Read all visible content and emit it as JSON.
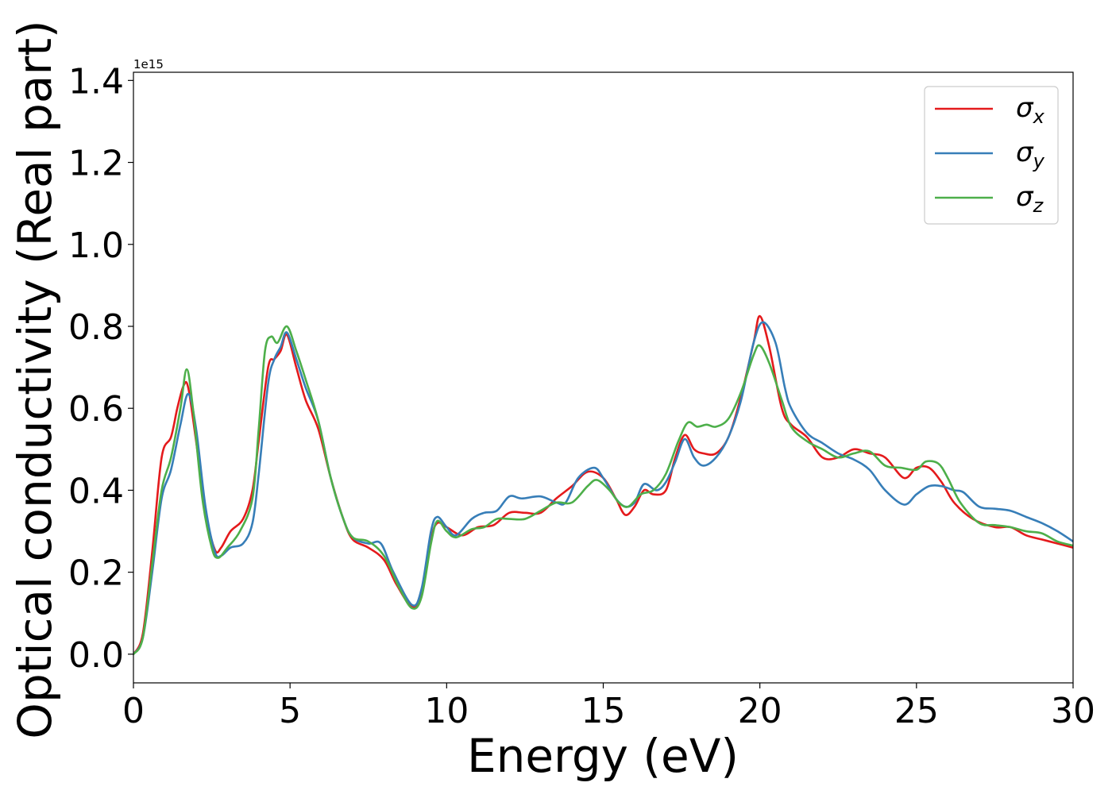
{
  "chart_data": {
    "type": "line",
    "xlabel": "Energy (eV)",
    "ylabel": "Optical conductivity (Real part)",
    "y_offset_label": "1e15",
    "xlim": [
      0,
      30
    ],
    "ylim": [
      -0.07,
      1.42
    ],
    "xticks": [
      0,
      5,
      10,
      15,
      20,
      25,
      30
    ],
    "xtick_labels": [
      "0",
      "5",
      "10",
      "15",
      "20",
      "25",
      "30"
    ],
    "yticks": [
      0.0,
      0.2,
      0.4,
      0.6,
      0.8,
      1.0,
      1.2,
      1.4
    ],
    "ytick_labels": [
      "0.0",
      "0.2",
      "0.4",
      "0.6",
      "0.8",
      "1.0",
      "1.2",
      "1.4"
    ],
    "grid": false,
    "legend_position": "top-right",
    "series": [
      {
        "name": "x",
        "legend_symbol": "σ",
        "legend_sub": "x",
        "color": "#e41a1c",
        "points": [
          [
            0,
            0.0
          ],
          [
            0.3,
            0.05
          ],
          [
            0.6,
            0.25
          ],
          [
            0.9,
            0.48
          ],
          [
            1.2,
            0.53
          ],
          [
            1.4,
            0.6
          ],
          [
            1.6,
            0.655
          ],
          [
            1.75,
            0.65
          ],
          [
            2.0,
            0.52
          ],
          [
            2.3,
            0.35
          ],
          [
            2.6,
            0.255
          ],
          [
            2.8,
            0.26
          ],
          [
            3.1,
            0.3
          ],
          [
            3.5,
            0.33
          ],
          [
            3.8,
            0.4
          ],
          [
            4.0,
            0.52
          ],
          [
            4.3,
            0.7
          ],
          [
            4.5,
            0.72
          ],
          [
            4.7,
            0.74
          ],
          [
            4.9,
            0.78
          ],
          [
            5.2,
            0.7
          ],
          [
            5.5,
            0.62
          ],
          [
            5.9,
            0.55
          ],
          [
            6.3,
            0.43
          ],
          [
            6.7,
            0.33
          ],
          [
            7.0,
            0.28
          ],
          [
            7.5,
            0.26
          ],
          [
            8.0,
            0.23
          ],
          [
            8.4,
            0.17
          ],
          [
            8.9,
            0.115
          ],
          [
            9.2,
            0.15
          ],
          [
            9.5,
            0.28
          ],
          [
            9.7,
            0.32
          ],
          [
            10.0,
            0.31
          ],
          [
            10.5,
            0.29
          ],
          [
            11.0,
            0.31
          ],
          [
            11.5,
            0.315
          ],
          [
            12.0,
            0.345
          ],
          [
            12.5,
            0.345
          ],
          [
            13.0,
            0.345
          ],
          [
            13.5,
            0.38
          ],
          [
            14.0,
            0.41
          ],
          [
            14.5,
            0.445
          ],
          [
            15.0,
            0.43
          ],
          [
            15.4,
            0.38
          ],
          [
            15.7,
            0.34
          ],
          [
            16.0,
            0.36
          ],
          [
            16.3,
            0.4
          ],
          [
            16.6,
            0.39
          ],
          [
            17.0,
            0.4
          ],
          [
            17.3,
            0.48
          ],
          [
            17.6,
            0.535
          ],
          [
            17.9,
            0.5
          ],
          [
            18.2,
            0.49
          ],
          [
            18.6,
            0.49
          ],
          [
            19.0,
            0.53
          ],
          [
            19.4,
            0.63
          ],
          [
            19.8,
            0.76
          ],
          [
            20.0,
            0.825
          ],
          [
            20.3,
            0.75
          ],
          [
            20.7,
            0.6
          ],
          [
            21.0,
            0.56
          ],
          [
            21.5,
            0.53
          ],
          [
            22.0,
            0.48
          ],
          [
            22.5,
            0.48
          ],
          [
            23.0,
            0.5
          ],
          [
            23.5,
            0.49
          ],
          [
            24.0,
            0.48
          ],
          [
            24.6,
            0.43
          ],
          [
            25.0,
            0.455
          ],
          [
            25.4,
            0.455
          ],
          [
            25.8,
            0.42
          ],
          [
            26.2,
            0.37
          ],
          [
            26.8,
            0.33
          ],
          [
            27.5,
            0.31
          ],
          [
            28.0,
            0.31
          ],
          [
            28.5,
            0.29
          ],
          [
            29.0,
            0.28
          ],
          [
            29.5,
            0.27
          ],
          [
            30.0,
            0.26
          ]
        ]
      },
      {
        "name": "y",
        "legend_symbol": "σ",
        "legend_sub": "y",
        "color": "#377eb8",
        "points": [
          [
            0,
            0.0
          ],
          [
            0.3,
            0.04
          ],
          [
            0.6,
            0.2
          ],
          [
            0.9,
            0.38
          ],
          [
            1.2,
            0.45
          ],
          [
            1.5,
            0.56
          ],
          [
            1.75,
            0.635
          ],
          [
            2.0,
            0.55
          ],
          [
            2.3,
            0.36
          ],
          [
            2.6,
            0.25
          ],
          [
            2.8,
            0.24
          ],
          [
            3.1,
            0.26
          ],
          [
            3.5,
            0.27
          ],
          [
            3.8,
            0.32
          ],
          [
            4.0,
            0.44
          ],
          [
            4.3,
            0.66
          ],
          [
            4.5,
            0.72
          ],
          [
            4.7,
            0.75
          ],
          [
            4.9,
            0.785
          ],
          [
            5.2,
            0.72
          ],
          [
            5.5,
            0.65
          ],
          [
            5.9,
            0.57
          ],
          [
            6.3,
            0.43
          ],
          [
            6.7,
            0.33
          ],
          [
            7.0,
            0.285
          ],
          [
            7.5,
            0.27
          ],
          [
            7.9,
            0.27
          ],
          [
            8.3,
            0.2
          ],
          [
            8.9,
            0.12
          ],
          [
            9.2,
            0.16
          ],
          [
            9.5,
            0.3
          ],
          [
            9.7,
            0.335
          ],
          [
            10.0,
            0.31
          ],
          [
            10.3,
            0.29
          ],
          [
            10.8,
            0.33
          ],
          [
            11.2,
            0.345
          ],
          [
            11.6,
            0.35
          ],
          [
            12.0,
            0.385
          ],
          [
            12.4,
            0.38
          ],
          [
            13.0,
            0.385
          ],
          [
            13.5,
            0.37
          ],
          [
            13.8,
            0.37
          ],
          [
            14.2,
            0.43
          ],
          [
            14.7,
            0.455
          ],
          [
            15.0,
            0.43
          ],
          [
            15.4,
            0.38
          ],
          [
            15.7,
            0.36
          ],
          [
            16.0,
            0.37
          ],
          [
            16.3,
            0.415
          ],
          [
            16.7,
            0.4
          ],
          [
            17.0,
            0.42
          ],
          [
            17.3,
            0.47
          ],
          [
            17.6,
            0.525
          ],
          [
            17.9,
            0.48
          ],
          [
            18.2,
            0.46
          ],
          [
            18.6,
            0.48
          ],
          [
            19.0,
            0.53
          ],
          [
            19.4,
            0.62
          ],
          [
            19.8,
            0.76
          ],
          [
            20.1,
            0.81
          ],
          [
            20.5,
            0.76
          ],
          [
            20.8,
            0.65
          ],
          [
            21.0,
            0.6
          ],
          [
            21.5,
            0.54
          ],
          [
            22.0,
            0.515
          ],
          [
            22.5,
            0.49
          ],
          [
            23.0,
            0.475
          ],
          [
            23.5,
            0.45
          ],
          [
            24.0,
            0.4
          ],
          [
            24.6,
            0.365
          ],
          [
            25.0,
            0.39
          ],
          [
            25.4,
            0.41
          ],
          [
            25.8,
            0.41
          ],
          [
            26.2,
            0.4
          ],
          [
            26.5,
            0.395
          ],
          [
            27.0,
            0.36
          ],
          [
            27.5,
            0.355
          ],
          [
            28.0,
            0.35
          ],
          [
            28.5,
            0.335
          ],
          [
            29.0,
            0.32
          ],
          [
            29.5,
            0.3
          ],
          [
            30.0,
            0.275
          ]
        ]
      },
      {
        "name": "z",
        "legend_symbol": "σ",
        "legend_sub": "z",
        "color": "#4daf4a",
        "points": [
          [
            0,
            0.0
          ],
          [
            0.3,
            0.04
          ],
          [
            0.6,
            0.22
          ],
          [
            0.9,
            0.4
          ],
          [
            1.2,
            0.48
          ],
          [
            1.5,
            0.6
          ],
          [
            1.7,
            0.695
          ],
          [
            1.9,
            0.6
          ],
          [
            2.2,
            0.38
          ],
          [
            2.5,
            0.26
          ],
          [
            2.7,
            0.235
          ],
          [
            3.0,
            0.26
          ],
          [
            3.4,
            0.3
          ],
          [
            3.8,
            0.38
          ],
          [
            4.0,
            0.55
          ],
          [
            4.2,
            0.74
          ],
          [
            4.4,
            0.775
          ],
          [
            4.6,
            0.76
          ],
          [
            4.9,
            0.8
          ],
          [
            5.2,
            0.74
          ],
          [
            5.5,
            0.67
          ],
          [
            5.9,
            0.57
          ],
          [
            6.3,
            0.43
          ],
          [
            6.7,
            0.33
          ],
          [
            7.0,
            0.285
          ],
          [
            7.5,
            0.275
          ],
          [
            8.0,
            0.24
          ],
          [
            8.5,
            0.16
          ],
          [
            8.9,
            0.112
          ],
          [
            9.2,
            0.14
          ],
          [
            9.5,
            0.27
          ],
          [
            9.7,
            0.325
          ],
          [
            10.0,
            0.3
          ],
          [
            10.3,
            0.285
          ],
          [
            10.8,
            0.305
          ],
          [
            11.2,
            0.31
          ],
          [
            11.6,
            0.33
          ],
          [
            12.0,
            0.33
          ],
          [
            12.5,
            0.33
          ],
          [
            13.0,
            0.35
          ],
          [
            13.5,
            0.37
          ],
          [
            14.0,
            0.37
          ],
          [
            14.5,
            0.41
          ],
          [
            14.8,
            0.425
          ],
          [
            15.2,
            0.4
          ],
          [
            15.5,
            0.37
          ],
          [
            15.8,
            0.36
          ],
          [
            16.2,
            0.39
          ],
          [
            16.6,
            0.4
          ],
          [
            17.0,
            0.44
          ],
          [
            17.4,
            0.52
          ],
          [
            17.7,
            0.565
          ],
          [
            18.0,
            0.555
          ],
          [
            18.3,
            0.56
          ],
          [
            18.6,
            0.555
          ],
          [
            19.0,
            0.575
          ],
          [
            19.4,
            0.64
          ],
          [
            19.8,
            0.73
          ],
          [
            20.0,
            0.753
          ],
          [
            20.3,
            0.71
          ],
          [
            20.7,
            0.62
          ],
          [
            21.0,
            0.555
          ],
          [
            21.5,
            0.52
          ],
          [
            22.0,
            0.5
          ],
          [
            22.5,
            0.48
          ],
          [
            23.0,
            0.49
          ],
          [
            23.5,
            0.495
          ],
          [
            24.0,
            0.46
          ],
          [
            24.5,
            0.455
          ],
          [
            25.0,
            0.45
          ],
          [
            25.3,
            0.47
          ],
          [
            25.7,
            0.465
          ],
          [
            26.0,
            0.43
          ],
          [
            26.4,
            0.37
          ],
          [
            27.0,
            0.32
          ],
          [
            27.5,
            0.315
          ],
          [
            28.0,
            0.31
          ],
          [
            28.5,
            0.3
          ],
          [
            29.0,
            0.295
          ],
          [
            29.5,
            0.275
          ],
          [
            30.0,
            0.265
          ]
        ]
      }
    ]
  }
}
